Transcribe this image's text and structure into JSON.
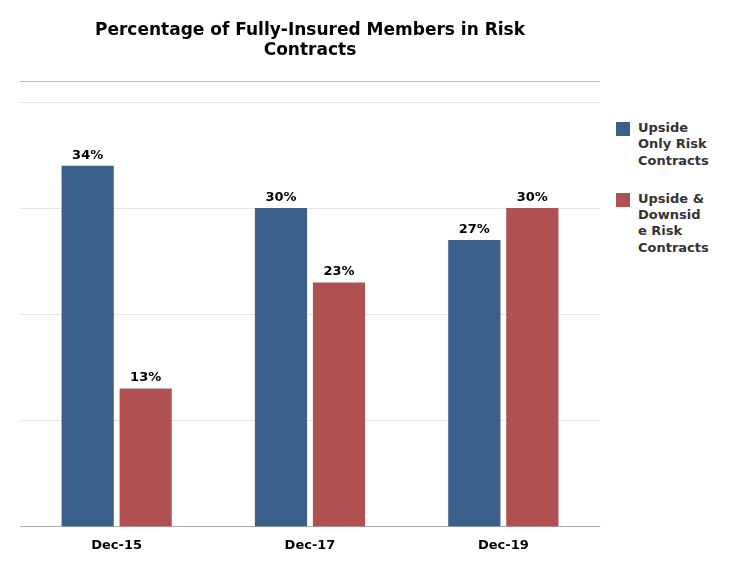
{
  "chart_data": {
    "type": "bar",
    "title": "Percentage of Fully-Insured Members in Risk\nContracts",
    "categories": [
      "Dec-15",
      "Dec-17",
      "Dec-19"
    ],
    "series": [
      {
        "name": "Upside\nOnly Risk\nContracts",
        "color": "#3A5F8A",
        "values": [
          34,
          30,
          27
        ],
        "value_labels": [
          "34%",
          "30%",
          "27%"
        ]
      },
      {
        "name": "Upside &\nDownsid\ne Risk\nContracts",
        "color": "#B05050",
        "values": [
          13,
          23,
          30
        ],
        "value_labels": [
          "13%",
          "23%",
          "30%"
        ]
      }
    ],
    "ylim": [
      0,
      42
    ],
    "yticks": [
      10,
      20,
      30,
      40
    ],
    "grid": true,
    "legend": "right",
    "data_labels": true,
    "tick_labels": "x"
  }
}
